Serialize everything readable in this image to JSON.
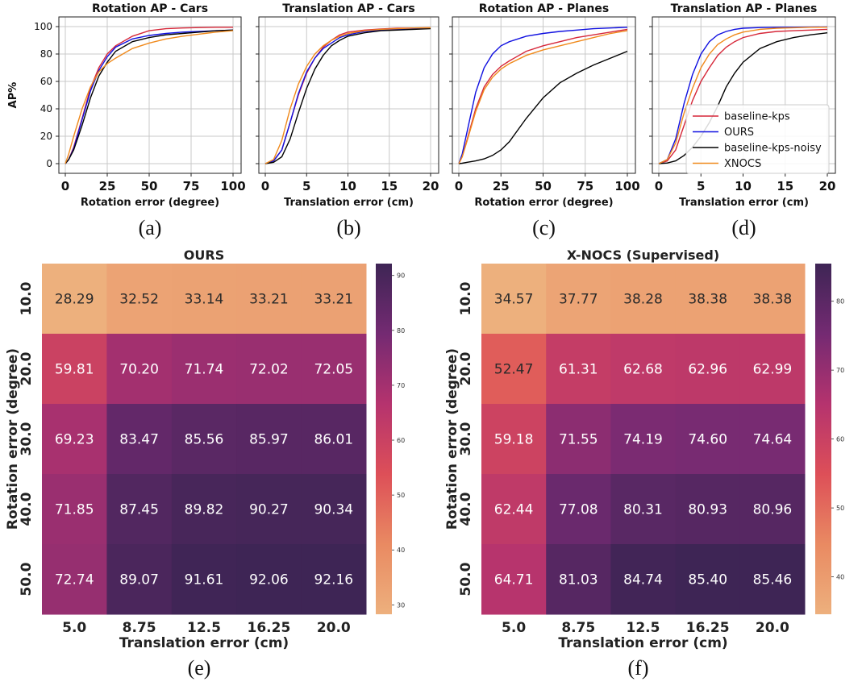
{
  "chart_data": [
    {
      "type": "line",
      "title": "Rotation AP - Cars",
      "xlabel": "Rotation error (degree)",
      "ylabel": "AP%",
      "xlim": [
        0,
        100
      ],
      "ylim": [
        0,
        100
      ],
      "xticks": [
        "0",
        "25",
        "50",
        "75",
        "100"
      ],
      "yticks": [
        "0",
        "20",
        "40",
        "60",
        "80",
        "100"
      ],
      "caption": "(a)",
      "series": [
        {
          "name": "baseline-kps",
          "color": "#d62739",
          "x": [
            0,
            2,
            5,
            10,
            15,
            20,
            25,
            30,
            40,
            50,
            60,
            70,
            80,
            90,
            100
          ],
          "y": [
            0,
            3,
            12,
            33,
            55,
            70,
            80,
            86,
            93,
            97,
            98.5,
            99,
            99.3,
            99.5,
            99.5
          ]
        },
        {
          "name": "OURS",
          "color": "#1010e0",
          "x": [
            0,
            2,
            5,
            10,
            15,
            20,
            25,
            30,
            40,
            50,
            60,
            70,
            80,
            90,
            100
          ],
          "y": [
            0,
            3,
            11,
            32,
            53,
            68,
            78,
            85,
            91,
            93.5,
            95,
            96,
            96.5,
            97,
            97.5
          ]
        },
        {
          "name": "baseline-kps-noisy",
          "color": "#000000",
          "x": [
            0,
            2,
            5,
            10,
            15,
            20,
            25,
            30,
            40,
            50,
            60,
            70,
            80,
            90,
            100
          ],
          "y": [
            0,
            3,
            10,
            28,
            48,
            64,
            74,
            82,
            89,
            92,
            94,
            95,
            96,
            97,
            97.5
          ]
        },
        {
          "name": "XNOCS",
          "color": "#f08a1c",
          "x": [
            0,
            2,
            5,
            10,
            15,
            20,
            25,
            30,
            40,
            50,
            60,
            70,
            80,
            90,
            100
          ],
          "y": [
            0,
            7,
            20,
            40,
            56,
            67,
            73,
            77,
            84,
            88,
            91,
            93,
            94.5,
            96,
            97
          ]
        }
      ]
    },
    {
      "type": "line",
      "title": "Translation AP - Cars",
      "xlabel": "Translation error (cm)",
      "xlim": [
        0,
        20
      ],
      "ylim": [
        0,
        100
      ],
      "xticks": [
        "0",
        "5",
        "10",
        "15",
        "20"
      ],
      "caption": "(b)",
      "series": [
        {
          "name": "baseline-kps",
          "color": "#d62739",
          "x": [
            0,
            1,
            2,
            3,
            4,
            5,
            6,
            7,
            8,
            9,
            10,
            12,
            14,
            16,
            18,
            20
          ],
          "y": [
            0,
            2,
            10,
            30,
            50,
            66,
            77,
            85,
            90,
            94,
            96,
            97.5,
            98.3,
            98.8,
            99,
            99.2
          ]
        },
        {
          "name": "OURS",
          "color": "#1010e0",
          "x": [
            0,
            1,
            2,
            3,
            4,
            5,
            6,
            7,
            8,
            9,
            10,
            12,
            14,
            16,
            18,
            20
          ],
          "y": [
            0,
            2,
            10,
            30,
            51,
            67,
            77,
            84,
            88,
            92,
            94,
            96.5,
            97.5,
            98,
            98.5,
            99
          ]
        },
        {
          "name": "baseline-kps-noisy",
          "color": "#000000",
          "x": [
            0,
            1,
            2,
            3,
            4,
            5,
            6,
            7,
            8,
            9,
            10,
            12,
            14,
            16,
            18,
            20
          ],
          "y": [
            0,
            1,
            5,
            18,
            37,
            55,
            69,
            79,
            86,
            90,
            93,
            95.5,
            97,
            97.5,
            98,
            98.5
          ]
        },
        {
          "name": "XNOCS",
          "color": "#f08a1c",
          "x": [
            0,
            1,
            2,
            3,
            4,
            5,
            6,
            7,
            8,
            9,
            10,
            12,
            14,
            16,
            18,
            20
          ],
          "y": [
            0,
            3,
            17,
            40,
            58,
            71,
            80,
            86,
            90,
            93,
            95,
            97,
            98,
            98.5,
            99,
            99.2
          ]
        }
      ]
    },
    {
      "type": "line",
      "title": "Rotation AP - Planes",
      "xlabel": "Rotation error (degree)",
      "xlim": [
        0,
        100
      ],
      "ylim": [
        0,
        100
      ],
      "xticks": [
        "0",
        "25",
        "50",
        "75",
        "100"
      ],
      "caption": "(c)",
      "series": [
        {
          "name": "baseline-kps",
          "color": "#d62739",
          "x": [
            0,
            2,
            5,
            10,
            15,
            20,
            25,
            30,
            40,
            50,
            60,
            70,
            80,
            90,
            100
          ],
          "y": [
            0,
            5,
            18,
            40,
            56,
            65,
            71,
            75,
            82,
            86,
            89,
            92,
            94,
            96,
            98
          ]
        },
        {
          "name": "OURS",
          "color": "#1010e0",
          "x": [
            0,
            2,
            5,
            10,
            15,
            20,
            25,
            30,
            40,
            50,
            60,
            70,
            80,
            90,
            100
          ],
          "y": [
            0,
            7,
            24,
            52,
            70,
            80,
            86,
            89,
            93,
            95,
            96.5,
            97.5,
            98.5,
            99,
            99.5
          ]
        },
        {
          "name": "baseline-kps-noisy",
          "color": "#000000",
          "x": [
            0,
            2,
            5,
            10,
            15,
            20,
            25,
            30,
            40,
            50,
            60,
            70,
            80,
            90,
            100
          ],
          "y": [
            0,
            0.3,
            1,
            2,
            3.5,
            6,
            10,
            16,
            33,
            48,
            59,
            66,
            72,
            77,
            82
          ]
        },
        {
          "name": "XNOCS",
          "color": "#f08a1c",
          "x": [
            0,
            2,
            5,
            10,
            15,
            20,
            25,
            30,
            40,
            50,
            60,
            70,
            80,
            90,
            100
          ],
          "y": [
            0,
            5,
            17,
            38,
            54,
            63,
            69,
            73,
            79,
            83,
            86,
            89,
            92,
            95,
            97
          ]
        }
      ]
    },
    {
      "type": "line",
      "title": "Translation AP - Planes",
      "xlabel": "Translation error (cm)",
      "xlim": [
        0,
        20
      ],
      "ylim": [
        0,
        100
      ],
      "xticks": [
        "0",
        "5",
        "10",
        "15",
        "20"
      ],
      "caption": "(d)",
      "legend": [
        "baseline-kps",
        "OURS",
        "baseline-kps-noisy",
        "XNOCS"
      ],
      "series": [
        {
          "name": "baseline-kps",
          "color": "#d62739",
          "x": [
            0,
            1,
            2,
            3,
            4,
            5,
            6,
            7,
            8,
            9,
            10,
            12,
            14,
            16,
            18,
            20
          ],
          "y": [
            0,
            2,
            10,
            28,
            46,
            60,
            70,
            79,
            85,
            89,
            92,
            95,
            96.5,
            97,
            97.5,
            98
          ]
        },
        {
          "name": "OURS",
          "color": "#1010e0",
          "x": [
            0,
            1,
            2,
            3,
            4,
            5,
            6,
            7,
            8,
            9,
            10,
            12,
            14,
            16,
            18,
            20
          ],
          "y": [
            0,
            3,
            18,
            44,
            65,
            80,
            89,
            94,
            96.5,
            98,
            98.8,
            99.3,
            99.5,
            99.6,
            99.7,
            99.8
          ]
        },
        {
          "name": "baseline-kps-noisy",
          "color": "#000000",
          "x": [
            0,
            1,
            2,
            3,
            4,
            5,
            6,
            7,
            8,
            9,
            10,
            12,
            14,
            16,
            18,
            20
          ],
          "y": [
            0,
            0.5,
            2,
            6,
            12,
            20,
            30,
            42,
            56,
            66,
            74,
            84,
            89,
            92,
            94,
            95.5
          ]
        },
        {
          "name": "XNOCS",
          "color": "#f08a1c",
          "x": [
            0,
            1,
            2,
            3,
            4,
            5,
            6,
            7,
            8,
            9,
            10,
            12,
            14,
            16,
            18,
            20
          ],
          "y": [
            0,
            3,
            15,
            37,
            55,
            70,
            80,
            87,
            91,
            94,
            96,
            98,
            98.8,
            99.2,
            99.5,
            99.6
          ]
        }
      ]
    },
    {
      "type": "heatmap",
      "title": "OURS",
      "xlabel": "Translation error (cm)",
      "ylabel": "Rotation error (degree)",
      "x": [
        "5.0",
        "8.75",
        "12.5",
        "16.25",
        "20.0"
      ],
      "y": [
        "10.0",
        "20.0",
        "30.0",
        "40.0",
        "50.0"
      ],
      "values": [
        [
          "28.29",
          "32.52",
          "33.14",
          "33.21",
          "33.21"
        ],
        [
          "59.81",
          "70.20",
          "71.74",
          "72.02",
          "72.05"
        ],
        [
          "69.23",
          "83.47",
          "85.56",
          "85.97",
          "86.01"
        ],
        [
          "71.85",
          "87.45",
          "89.82",
          "90.27",
          "90.34"
        ],
        [
          "72.74",
          "89.07",
          "91.61",
          "92.06",
          "92.16"
        ]
      ],
      "colorbar_range": [
        28.29,
        92.16
      ],
      "colorbar_ticks": [
        "30",
        "40",
        "50",
        "60",
        "70",
        "80",
        "90"
      ],
      "caption": "(e)"
    },
    {
      "type": "heatmap",
      "title": "X-NOCS (Supervised)",
      "xlabel": "Translation error (cm)",
      "ylabel": "Rotation error (degree)",
      "x": [
        "5.0",
        "8.75",
        "12.5",
        "16.25",
        "20.0"
      ],
      "y": [
        "10.0",
        "20.0",
        "30.0",
        "40.0",
        "50.0"
      ],
      "values": [
        [
          "34.57",
          "37.77",
          "38.28",
          "38.38",
          "38.38"
        ],
        [
          "52.47",
          "61.31",
          "62.68",
          "62.96",
          "62.99"
        ],
        [
          "59.18",
          "71.55",
          "74.19",
          "74.60",
          "74.64"
        ],
        [
          "62.44",
          "77.08",
          "80.31",
          "80.93",
          "80.96"
        ],
        [
          "64.71",
          "81.03",
          "84.74",
          "85.40",
          "85.46"
        ]
      ],
      "colorbar_range": [
        34.57,
        85.46
      ],
      "colorbar_ticks": [
        "40",
        "50",
        "60",
        "70",
        "80"
      ],
      "caption": "(f)"
    }
  ]
}
